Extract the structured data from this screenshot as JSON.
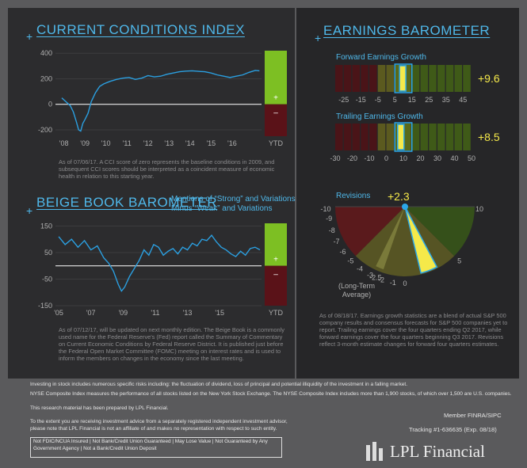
{
  "cci": {
    "title": "CURRENT CONDITIONS INDEX",
    "plus_marker": "+",
    "positive_mark": "+",
    "negative_mark": "–",
    "note": "As of 07/06/17. A CCI score of zero represents the baseline conditions in 2009, and subsequent CCI scores should be interpreted as a coincident measure of economic health in relation to this starting year.",
    "colors": {
      "line": "#2b9fe0",
      "positive": "#7dbf23",
      "negative": "#5a1218"
    }
  },
  "beige": {
    "title": "BEIGE BOOK BAROMETER",
    "plus_marker": "+",
    "subtitle_line1": "Mentions of “Strong” and Variations",
    "subtitle_line2": "Minus “Weak” and Variations",
    "positive_mark": "+",
    "negative_mark": "–",
    "note": "As of 07/12/17, will be updated on next monthly edition. The Beige Book is a commonly used name for the Federal Reserve's (Fed) report called the Summary of Commentary on Current Economic Conditions by Federal Reserve District. It is published just before the Federal Open Market Committee (FOMC) meeting on interest rates and is used to inform the members on changes in the economy since the last meeting."
  },
  "earnings": {
    "title": "EARNINGS BAROMETER",
    "plus_marker": "+",
    "forward_label": "Forward Earnings Growth",
    "forward_value_text": "+9.6",
    "trailing_label": "Trailing Earnings Growth",
    "trailing_value_text": "+8.5",
    "revisions_label": "Revisions",
    "revisions_value_text": "+2.3",
    "long_term_label_line1": "(Long-Term",
    "long_term_label_line2": "Average)",
    "note": "As of 08/18/17. Earnings growth statistics are a blend of actual S&P 500 company results and consensus forecasts for S&P 500 companies yet to report. Trailing earnings cover the four quarters ending Q2 2017, while forward earnings cover the four quarters beginning Q3 2017. Revisions reflect 3-month estimate changes for forward four quarters estimates."
  },
  "footer": {
    "line1": "Investing in stock includes numerous specific risks including: the fluctuation of dividend, loss of principal and potential illiquidity of the investment in a falling market.",
    "line2": "NYSE Composite Index measures the performance of all stocks listed on the New York Stock Exchange. The NYSE Composite Index includes more than 1,900 stocks, of which over 1,500 are U.S. companies.",
    "line3": "This research material has been prepared by LPL Financial.",
    "line4a": "To the extent you are receiving investment advice from a separately registered independent investment advisor,",
    "line4b": "please note that LPL Financial is not an affiliate of and makes no representation with respect to such entity.",
    "member": "Member FINRA/SIPC",
    "tracking": "Tracking #1-636635  (Exp. 08/18)",
    "disclaimer": "Not FDIC/NCUA Insured | Not Bank/Credit Union Guaranteed | May Lose Value | Not Guaranteed by Any Government Agency | Not a Bank/Credit Union Deposit",
    "logo_text": "LPL Financial"
  },
  "chart_data": [
    {
      "type": "line",
      "name": "cci",
      "y_ticks": [
        400,
        200,
        0,
        -200
      ],
      "ylim": [
        -250,
        420
      ],
      "x_tick_labels": [
        "'08",
        "'09",
        "'10",
        "'11",
        "'12",
        "'13",
        "'14",
        "'15",
        "'16",
        "YTD"
      ],
      "x_years": [
        2008,
        2009,
        2010,
        2011,
        2012,
        2013,
        2014,
        2015,
        2016
      ],
      "x": [
        2008.0,
        2008.2,
        2008.4,
        2008.55,
        2008.7,
        2008.8,
        2008.9,
        2009.0,
        2009.1,
        2009.25,
        2009.4,
        2009.6,
        2009.8,
        2010.0,
        2010.3,
        2010.6,
        2010.9,
        2011.2,
        2011.5,
        2011.8,
        2012.1,
        2012.4,
        2012.7,
        2013.0,
        2013.3,
        2013.6,
        2013.9,
        2014.2,
        2014.5,
        2014.8,
        2015.1,
        2015.4,
        2015.7,
        2016.0,
        2016.3,
        2016.6,
        2016.9,
        2017.2,
        2017.4
      ],
      "values": [
        50,
        20,
        -10,
        -60,
        -140,
        -200,
        -210,
        -150,
        -120,
        -70,
        20,
        90,
        140,
        160,
        180,
        195,
        205,
        210,
        195,
        205,
        225,
        215,
        220,
        235,
        245,
        255,
        260,
        262,
        258,
        255,
        245,
        230,
        220,
        210,
        220,
        230,
        250,
        265,
        262
      ],
      "ytd_positive_range": [
        0,
        420
      ],
      "ytd_negative_range": [
        -250,
        0
      ]
    },
    {
      "type": "line",
      "name": "beige_book",
      "y_ticks": [
        150,
        50,
        -50,
        -150
      ],
      "ylim": [
        -150,
        160
      ],
      "x_tick_labels": [
        "'05",
        "'07",
        "'09",
        "'11",
        "'13",
        "'15",
        "YTD"
      ],
      "x_years": [
        2005,
        2007,
        2009,
        2011,
        2013,
        2015
      ],
      "x": [
        2005.0,
        2005.4,
        2005.8,
        2006.2,
        2006.6,
        2007.0,
        2007.4,
        2007.8,
        2008.1,
        2008.4,
        2008.7,
        2008.9,
        2009.1,
        2009.4,
        2009.7,
        2010.0,
        2010.3,
        2010.6,
        2010.9,
        2011.2,
        2011.5,
        2011.8,
        2012.1,
        2012.4,
        2012.7,
        2013.0,
        2013.3,
        2013.6,
        2013.9,
        2014.2,
        2014.5,
        2014.8,
        2015.1,
        2015.4,
        2015.7,
        2016.0,
        2016.3,
        2016.6,
        2016.9,
        2017.2,
        2017.5
      ],
      "values": [
        110,
        80,
        100,
        70,
        95,
        60,
        75,
        30,
        10,
        -20,
        -70,
        -95,
        -80,
        -40,
        -10,
        20,
        60,
        40,
        80,
        70,
        40,
        55,
        65,
        45,
        70,
        60,
        85,
        75,
        100,
        95,
        115,
        90,
        70,
        60,
        45,
        35,
        55,
        40,
        65,
        70,
        60
      ],
      "ytd_positive_range": [
        0,
        160
      ],
      "ytd_negative_range": [
        -150,
        0
      ]
    },
    {
      "type": "bar",
      "name": "forward_earnings_growth",
      "value": 9.6,
      "tick_labels": [
        "-25",
        "-15",
        "-5",
        "5",
        "15",
        "25",
        "35",
        "45"
      ],
      "ticks": [
        -25,
        -15,
        -5,
        5,
        15,
        25,
        35,
        45
      ],
      "xlim": [
        -30,
        50
      ],
      "highlight_range": [
        5,
        15
      ]
    },
    {
      "type": "bar",
      "name": "trailing_earnings_growth",
      "value": 8.5,
      "tick_labels": [
        "-30",
        "-20",
        "-10",
        "0",
        "10",
        "20",
        "30",
        "40",
        "50"
      ],
      "ticks": [
        -30,
        -20,
        -10,
        0,
        10,
        20,
        30,
        40,
        50
      ],
      "xlim": [
        -30,
        50
      ],
      "highlight_range": [
        5,
        15
      ]
    },
    {
      "type": "pie",
      "name": "revisions",
      "value": 2.3,
      "long_term_average": -2.5,
      "range": [
        -10,
        10
      ],
      "scale_labels": [
        "-10",
        "-9",
        "-8",
        "-7",
        "-6",
        "-5",
        "-4",
        "-3",
        "-2.5",
        "-2",
        "-1",
        "0",
        "5",
        "10"
      ],
      "scale_values": [
        -10,
        -9,
        -8,
        -7,
        -6,
        -5,
        -4,
        -3,
        -2.5,
        -2,
        -1,
        0,
        5,
        10
      ]
    }
  ]
}
